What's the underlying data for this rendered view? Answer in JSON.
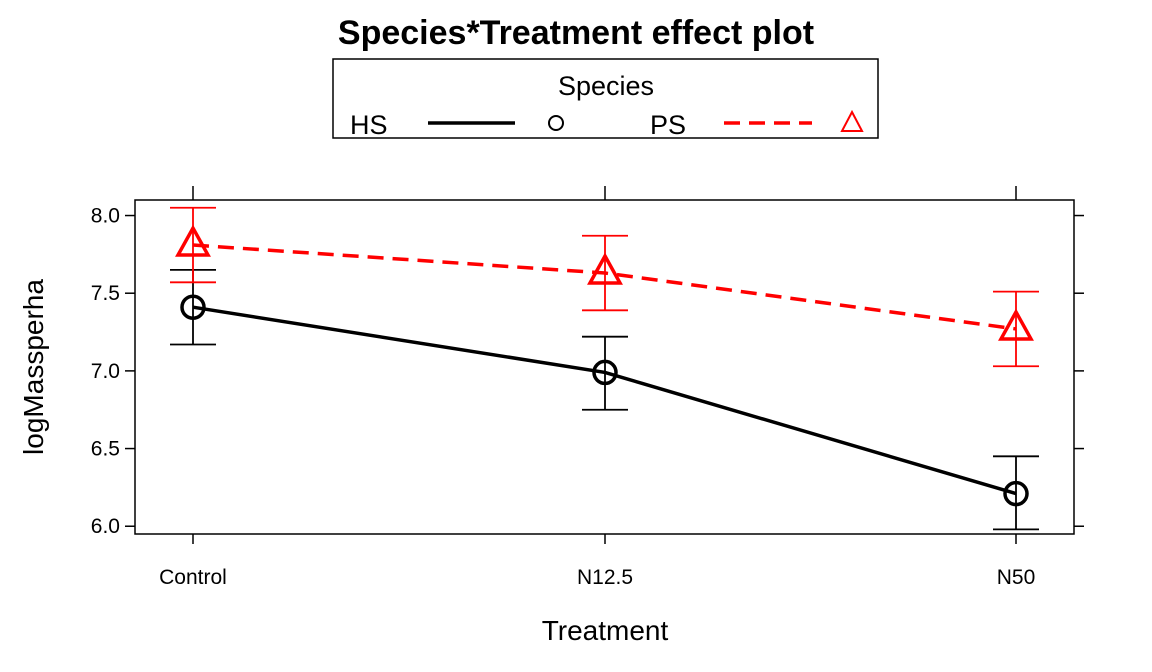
{
  "chart_data": {
    "type": "line",
    "title": "Species*Treatment effect plot",
    "xlabel": "Treatment",
    "ylabel": "logMassperha",
    "categories": [
      "Control",
      "N12.5",
      "N50"
    ],
    "ylim": [
      5.95,
      8.1
    ],
    "yticks": [
      "6.0",
      "6.5",
      "7.0",
      "7.5",
      "8.0"
    ],
    "legend": {
      "title": "Species",
      "placement": "top",
      "entries": [
        "HS",
        "PS"
      ]
    },
    "series": [
      {
        "name": "HS",
        "values": [
          7.41,
          6.99,
          6.21
        ],
        "lower": [
          7.17,
          6.75,
          5.98
        ],
        "upper": [
          7.65,
          7.22,
          6.45
        ],
        "color": "#000000",
        "line": "solid",
        "marker": "circle"
      },
      {
        "name": "PS",
        "values": [
          7.81,
          7.63,
          7.27
        ],
        "lower": [
          7.57,
          7.39,
          7.03
        ],
        "upper": [
          8.05,
          7.87,
          7.51
        ],
        "color": "#ff0000",
        "line": "dashed",
        "marker": "triangle"
      }
    ]
  }
}
